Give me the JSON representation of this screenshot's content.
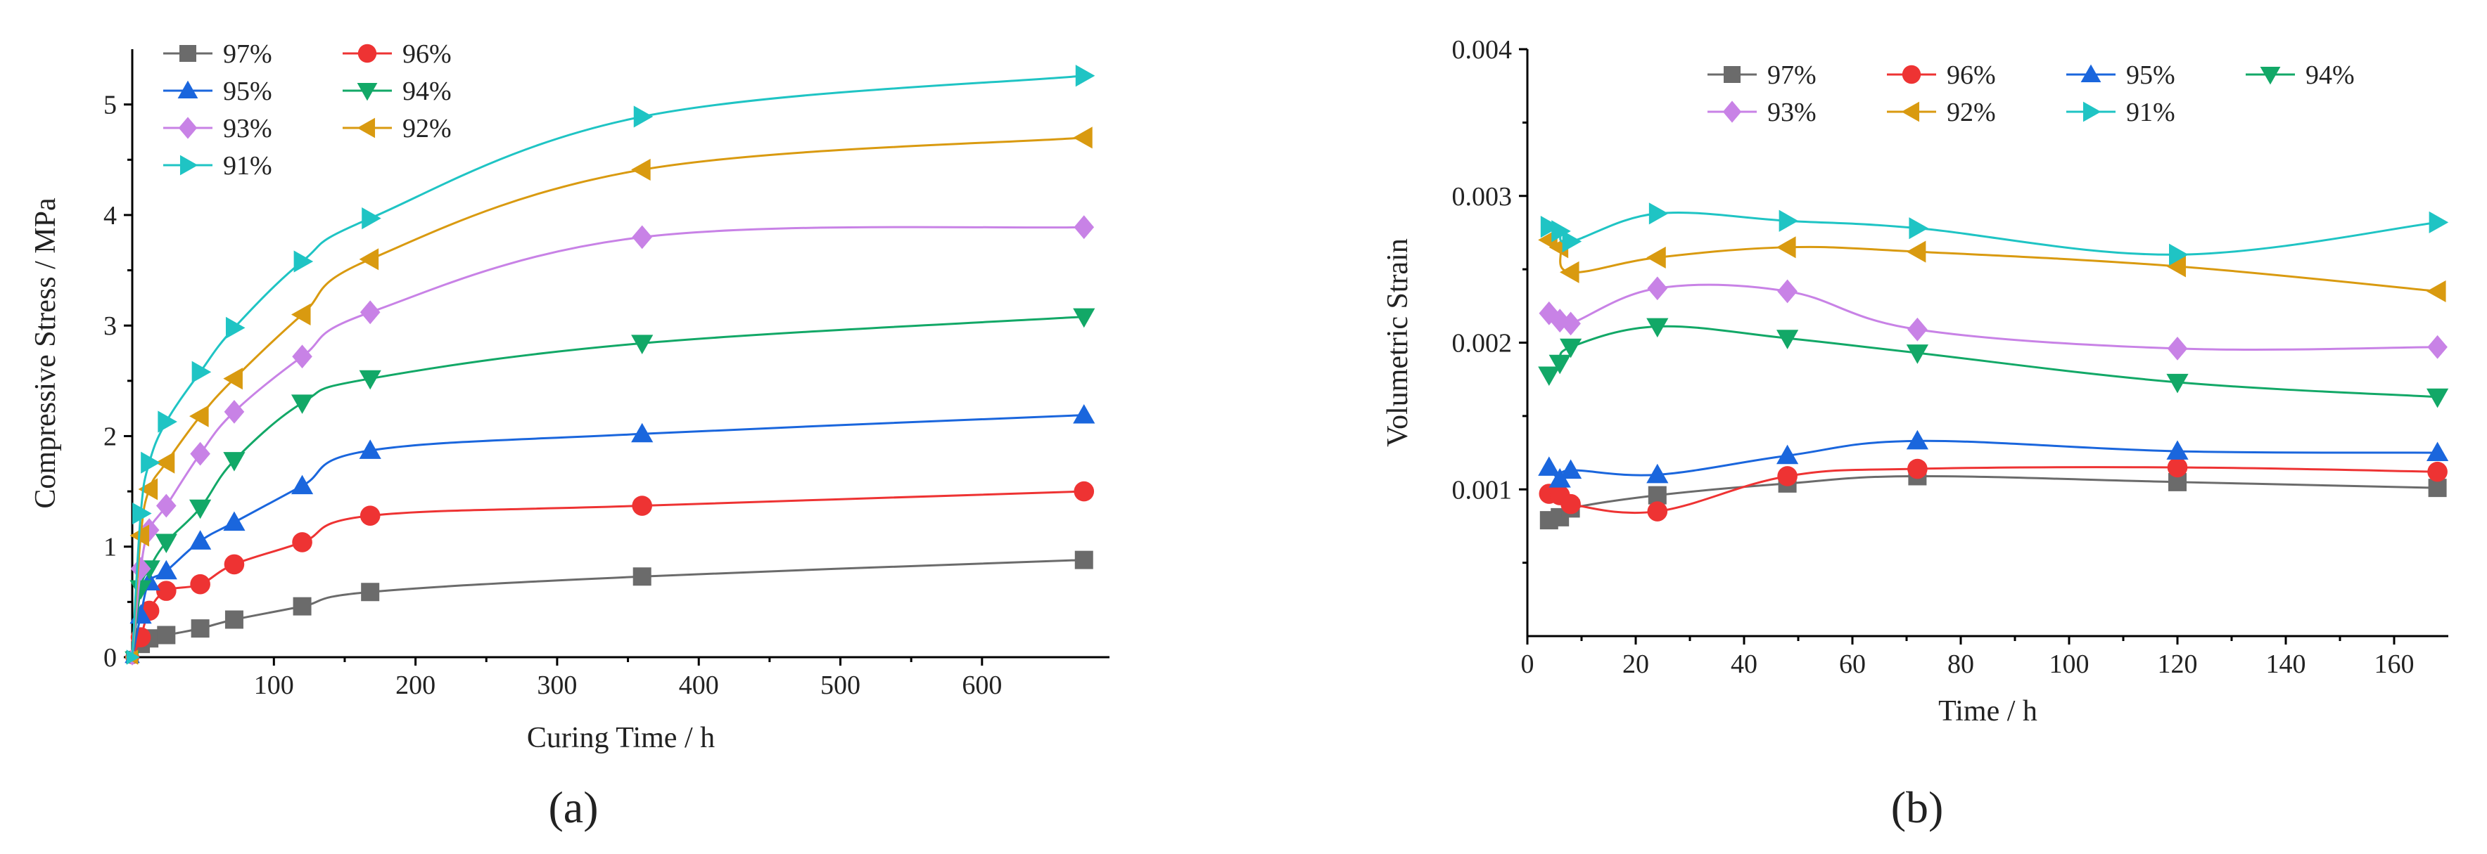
{
  "figure_labels": [
    "(a)",
    "(b)"
  ],
  "chart_data": [
    {
      "type": "scatter",
      "panel_label": "(a)",
      "title": "",
      "xlabel": "Curing Time / h",
      "ylabel": "Compressive Stress / MPa",
      "xlim": [
        0,
        690
      ],
      "ylim": [
        0,
        5.5
      ],
      "xticks": [
        100,
        200,
        300,
        400,
        500,
        600
      ],
      "yticks": [
        0,
        1,
        2,
        3,
        4,
        5
      ],
      "grid": false,
      "legend_position": "top-left",
      "x": [
        0,
        6,
        12,
        24,
        48,
        72,
        120,
        168,
        360,
        672
      ],
      "series": [
        {
          "name": "97%",
          "color": "#6b6b6b",
          "marker": "square",
          "values": [
            0,
            0.12,
            0.17,
            0.2,
            0.26,
            0.34,
            0.46,
            0.59,
            0.73,
            0.88
          ]
        },
        {
          "name": "96%",
          "color": "#ee3333",
          "marker": "circle",
          "values": [
            0,
            0.18,
            0.42,
            0.6,
            0.66,
            0.84,
            1.04,
            1.28,
            1.37,
            1.5
          ]
        },
        {
          "name": "95%",
          "color": "#1a66dd",
          "marker": "triangle-up",
          "values": [
            0,
            0.38,
            0.68,
            0.78,
            1.05,
            1.22,
            1.55,
            1.87,
            2.02,
            2.19
          ]
        },
        {
          "name": "94%",
          "color": "#12a867",
          "marker": "triangle-down",
          "values": [
            0,
            0.62,
            0.8,
            1.04,
            1.35,
            1.78,
            2.3,
            2.52,
            2.84,
            3.08
          ]
        },
        {
          "name": "93%",
          "color": "#c882e6",
          "marker": "diamond",
          "values": [
            0,
            0.8,
            1.15,
            1.37,
            1.84,
            2.22,
            2.72,
            3.12,
            3.8,
            3.89
          ]
        },
        {
          "name": "92%",
          "color": "#d99a10",
          "marker": "triangle-left",
          "values": [
            0,
            1.1,
            1.52,
            1.76,
            2.18,
            2.52,
            3.1,
            3.6,
            4.41,
            4.7
          ]
        },
        {
          "name": "91%",
          "color": "#1fc4c4",
          "marker": "triangle-right",
          "values": [
            0,
            1.3,
            1.76,
            2.13,
            2.58,
            2.98,
            3.58,
            3.97,
            4.89,
            5.26
          ]
        }
      ]
    },
    {
      "type": "scatter",
      "panel_label": "(b)",
      "title": "",
      "xlabel": "Time / h",
      "ylabel": "Volumetric Strain",
      "xlim": [
        0,
        170
      ],
      "ylim": [
        0,
        0.004
      ],
      "xticks": [
        0,
        20,
        40,
        60,
        80,
        100,
        120,
        140,
        160
      ],
      "yticks": [
        0.001,
        0.002,
        0.003,
        0.004
      ],
      "ytick_labels": [
        "0.001",
        "0.002",
        "0.003",
        "0.004"
      ],
      "grid": false,
      "legend_position": "top",
      "x": [
        4,
        6,
        8,
        24,
        48,
        72,
        120,
        168
      ],
      "series": [
        {
          "name": "97%",
          "color": "#6b6b6b",
          "marker": "square",
          "values": [
            0.00079,
            0.00081,
            0.00087,
            0.00096,
            0.00104,
            0.00109,
            0.00105,
            0.00101
          ]
        },
        {
          "name": "96%",
          "color": "#ee3333",
          "marker": "circle",
          "values": [
            0.00097,
            0.00096,
            0.0009,
            0.00085,
            0.00109,
            0.00114,
            0.00115,
            0.00112
          ]
        },
        {
          "name": "95%",
          "color": "#1a66dd",
          "marker": "triangle-up",
          "values": [
            0.00115,
            0.00107,
            0.00113,
            0.0011,
            0.00123,
            0.00133,
            0.00126,
            0.00125
          ]
        },
        {
          "name": "94%",
          "color": "#12a867",
          "marker": "triangle-down",
          "values": [
            0.00178,
            0.00186,
            0.00197,
            0.00211,
            0.00203,
            0.00193,
            0.00173,
            0.00163
          ]
        },
        {
          "name": "93%",
          "color": "#c882e6",
          "marker": "diamond",
          "values": [
            0.0022,
            0.00215,
            0.00213,
            0.00237,
            0.00235,
            0.00209,
            0.00196,
            0.00197
          ]
        },
        {
          "name": "92%",
          "color": "#d99a10",
          "marker": "triangle-left",
          "values": [
            0.0027,
            0.00265,
            0.00248,
            0.00258,
            0.00265,
            0.00262,
            0.00252,
            0.00235
          ]
        },
        {
          "name": "91%",
          "color": "#1fc4c4",
          "marker": "triangle-right",
          "values": [
            0.00279,
            0.00276,
            0.00269,
            0.00288,
            0.00283,
            0.00278,
            0.0026,
            0.00282
          ]
        }
      ]
    }
  ]
}
